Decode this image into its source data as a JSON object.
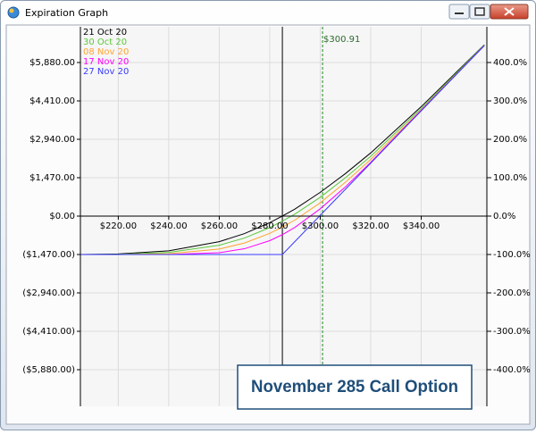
{
  "window_title": "Expiration Graph",
  "chart_data": {
    "type": "line",
    "caption": "November 285 Call Option",
    "x": [
      205,
      220,
      240,
      260,
      270,
      280,
      285,
      290,
      300,
      310,
      320,
      340,
      365
    ],
    "series": [
      {
        "name": "21 Oct 20",
        "color": "#000000",
        "values": [
          -1470,
          -1450,
          -1330,
          -980,
          -670,
          -250,
          0,
          270,
          910,
          1630,
          2420,
          4190,
          6560
        ]
      },
      {
        "name": "30 Oct 20",
        "color": "#5cc83c",
        "values": [
          -1470,
          -1465,
          -1390,
          -1115,
          -840,
          -440,
          -190,
          80,
          720,
          1470,
          2290,
          4120,
          6550
        ]
      },
      {
        "name": "08 Nov 20",
        "color": "#ffa530",
        "values": [
          -1470,
          -1470,
          -1440,
          -1260,
          -1030,
          -660,
          -420,
          -150,
          510,
          1300,
          2170,
          4060,
          6530
        ]
      },
      {
        "name": "17 Nov 20",
        "color": "#ff00ff",
        "values": [
          -1470,
          -1470,
          -1470,
          -1400,
          -1250,
          -940,
          -710,
          -430,
          280,
          1120,
          2060,
          4050,
          6530
        ]
      },
      {
        "name": "27 Nov 20",
        "color": "#3a3aff",
        "values": [
          -1470,
          -1470,
          -1470,
          -1470,
          -1470,
          -1470,
          -1470,
          -970,
          30,
          1030,
          2030,
          4030,
          6530
        ]
      }
    ],
    "markers": [
      {
        "value": 285,
        "color": "#000000"
      },
      {
        "value": 300.91,
        "label": "$300.91",
        "color": "#1a8a1a",
        "dashed": true
      }
    ],
    "xlim": [
      205,
      366
    ],
    "xticks": [
      {
        "value": 220,
        "label": "$220.00"
      },
      {
        "value": 240,
        "label": "$240.00"
      },
      {
        "value": 260,
        "label": "$260.00"
      },
      {
        "value": 280,
        "label": "$280.00"
      },
      {
        "value": 300,
        "label": "$300.00"
      },
      {
        "value": 320,
        "label": "$320.00"
      },
      {
        "value": 340,
        "label": "$340.00"
      }
    ],
    "ylim": [
      -7282,
      7247
    ],
    "yticks": [
      {
        "value": 5880,
        "label": "$5,880.00"
      },
      {
        "value": 4410,
        "label": "$4,410.00"
      },
      {
        "value": 2940,
        "label": "$2,940.00"
      },
      {
        "value": 1470,
        "label": "$1,470.00"
      },
      {
        "value": 0,
        "label": "$0.00"
      },
      {
        "value": -1470,
        "label": "($1,470.00)"
      },
      {
        "value": -2940,
        "label": "($2,940.00)"
      },
      {
        "value": -4410,
        "label": "($4,410.00)"
      },
      {
        "value": -5880,
        "label": "($5,880.00)"
      }
    ],
    "y2lim": [
      -495.4,
      493
    ],
    "y2ticks": [
      {
        "value": 400,
        "label": "400.0%"
      },
      {
        "value": 300,
        "label": "300.0%"
      },
      {
        "value": 200,
        "label": "200.0%"
      },
      {
        "value": 100,
        "label": "100.0%"
      },
      {
        "value": 0,
        "label": "0.0%"
      },
      {
        "value": -100,
        "label": "-100.0%"
      },
      {
        "value": -200,
        "label": "-200.0%"
      },
      {
        "value": -300,
        "label": "-300.0%"
      },
      {
        "value": -400,
        "label": "-400.0%"
      }
    ],
    "grid": true
  }
}
